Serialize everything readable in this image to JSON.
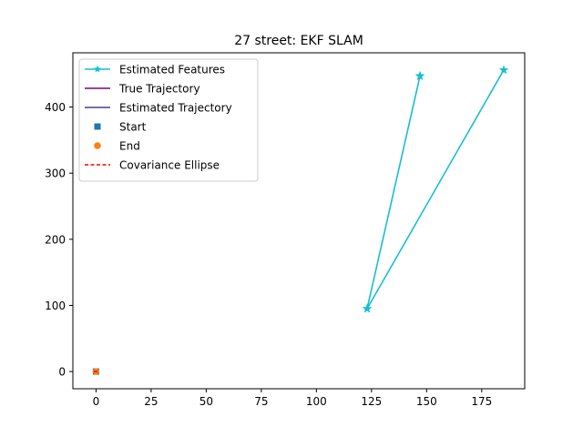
{
  "chart_data": {
    "type": "line",
    "title": "27 street: EKF SLAM",
    "xlabel": "",
    "ylabel": "",
    "xlim": [
      -10.5,
      194.5
    ],
    "ylim": [
      -26,
      482
    ],
    "xticks": [
      0,
      25,
      50,
      75,
      100,
      125,
      150,
      175
    ],
    "yticks": [
      0,
      100,
      200,
      300,
      400
    ],
    "grid": false,
    "legend_position": "top-left",
    "series": [
      {
        "name": "Estimated Features",
        "kind": "line-star",
        "color": "#17becf",
        "x": [
          147,
          123,
          147,
          123,
          185
        ],
        "y": [
          447,
          95,
          447,
          95,
          456
        ]
      },
      {
        "name": "True Trajectory",
        "kind": "line",
        "color": "#800080",
        "x": [
          0
        ],
        "y": [
          0
        ]
      },
      {
        "name": "Estimated Trajectory",
        "kind": "line",
        "color": "#483d8b",
        "x": [
          0
        ],
        "y": [
          0
        ]
      },
      {
        "name": "Start",
        "kind": "square",
        "color": "#1f77b4",
        "x": [
          0
        ],
        "y": [
          0
        ]
      },
      {
        "name": "End",
        "kind": "circle",
        "color": "#ff7f0e",
        "x": [
          0
        ],
        "y": [
          0
        ]
      },
      {
        "name": "Covariance Ellipse",
        "kind": "dashed",
        "color": "#ff0000",
        "x": [
          -1,
          1
        ],
        "y": [
          0,
          0
        ]
      }
    ]
  }
}
